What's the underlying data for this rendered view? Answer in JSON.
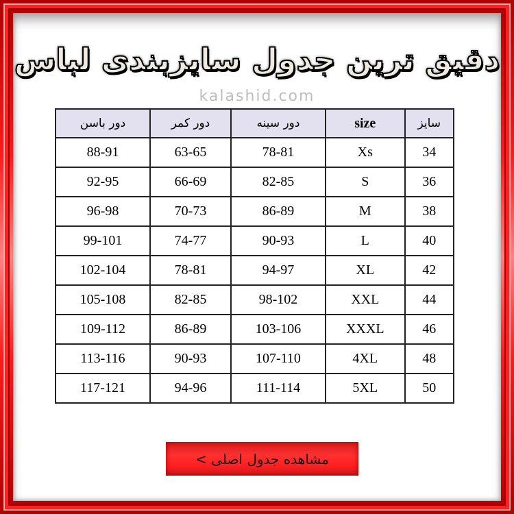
{
  "title": "دقیق ترین جدول سایزبندی لباس",
  "site": "kalashid.com",
  "colors": {
    "frame": "#ff2020",
    "header_bg": "#e3e0ef",
    "button": "#ff2a2a"
  },
  "table": {
    "headers": [
      "سایز",
      "size",
      "دور سینه",
      "دور کمر",
      "دور باسن"
    ],
    "rows": [
      [
        "34",
        "Xs",
        "78-81",
        "63-65",
        "88-91"
      ],
      [
        "36",
        "S",
        "82-85",
        "66-69",
        "92-95"
      ],
      [
        "38",
        "M",
        "86-89",
        "70-73",
        "96-98"
      ],
      [
        "40",
        "L",
        "90-93",
        "74-77",
        "99-101"
      ],
      [
        "42",
        "XL",
        "94-97",
        "78-81",
        "102-104"
      ],
      [
        "44",
        "XXL",
        "98-102",
        "82-85",
        "105-108"
      ],
      [
        "46",
        "XXXL",
        "103-106",
        "86-89",
        "109-112"
      ],
      [
        "48",
        "4XL",
        "107-110",
        "90-93",
        "113-116"
      ],
      [
        "50",
        "5XL",
        "111-114",
        "94-96",
        "117-121"
      ]
    ]
  },
  "button": {
    "label": "مشاهده جدول اصلی >"
  }
}
